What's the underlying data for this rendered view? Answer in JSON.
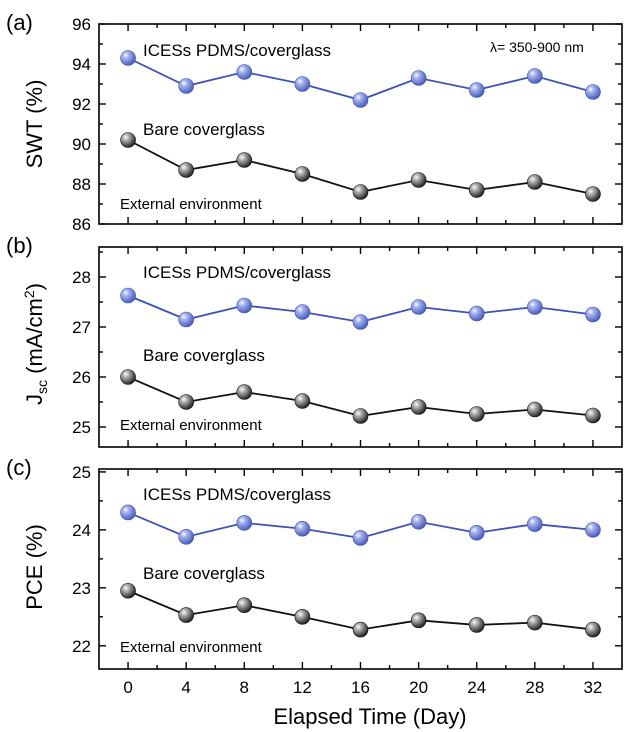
{
  "colors": {
    "ices": "#3f51b5",
    "ices_light": "#a9b7ef",
    "bare": "#111111",
    "bare_light": "#bdbdbd"
  },
  "xlabel": "Elapsed Time (Day)",
  "chart_data": [
    {
      "type": "line",
      "panel": "(a)",
      "ylabel": "SWT (%)",
      "ylim": [
        86,
        96
      ],
      "yticks": [
        86,
        88,
        90,
        92,
        94,
        96
      ],
      "xlim": [
        -2,
        34
      ],
      "xticks": [
        0,
        4,
        8,
        12,
        16,
        20,
        24,
        28,
        32
      ],
      "x": [
        0,
        4,
        8,
        12,
        16,
        20,
        24,
        28,
        32
      ],
      "series": [
        {
          "name": "ICESs PDMS/coverglass",
          "key": "ices",
          "values": [
            94.3,
            92.9,
            93.6,
            93.0,
            92.2,
            93.3,
            92.7,
            93.4,
            92.6
          ]
        },
        {
          "name": "Bare coverglass",
          "key": "bare",
          "values": [
            90.2,
            88.7,
            89.2,
            88.5,
            87.6,
            88.2,
            87.7,
            88.1,
            87.5
          ]
        }
      ],
      "annotations": {
        "condition": "External environment",
        "wavelength": "λ= 350-900 nm"
      }
    },
    {
      "type": "line",
      "panel": "(b)",
      "ylabel_main": "J",
      "ylabel_sub": "sc",
      "ylabel_rest": " (mA/cm",
      "ylabel_sup": "2",
      "ylabel_end": ")",
      "ylim": [
        24.6,
        28.6
      ],
      "yticks": [
        25,
        26,
        27,
        28
      ],
      "xlim": [
        -2,
        34
      ],
      "xticks": [
        0,
        4,
        8,
        12,
        16,
        20,
        24,
        28,
        32
      ],
      "x": [
        0,
        4,
        8,
        12,
        16,
        20,
        24,
        28,
        32
      ],
      "series": [
        {
          "name": "ICESs PDMS/coverglass",
          "key": "ices",
          "values": [
            27.63,
            27.15,
            27.43,
            27.3,
            27.1,
            27.4,
            27.27,
            27.4,
            27.25
          ]
        },
        {
          "name": "Bare coverglass",
          "key": "bare",
          "values": [
            26.0,
            25.5,
            25.7,
            25.52,
            25.22,
            25.4,
            25.26,
            25.35,
            25.23
          ]
        }
      ],
      "annotations": {
        "condition": "External environment"
      }
    },
    {
      "type": "line",
      "panel": "(c)",
      "ylabel": "PCE (%)",
      "ylim": [
        21.6,
        25.05
      ],
      "yticks": [
        22,
        23,
        24,
        25
      ],
      "xlim": [
        -2,
        34
      ],
      "xticks": [
        0,
        4,
        8,
        12,
        16,
        20,
        24,
        28,
        32
      ],
      "x": [
        0,
        4,
        8,
        12,
        16,
        20,
        24,
        28,
        32
      ],
      "series": [
        {
          "name": "ICESs PDMS/coverglass",
          "key": "ices",
          "values": [
            24.3,
            23.88,
            24.12,
            24.02,
            23.86,
            24.14,
            23.95,
            24.1,
            24.0
          ]
        },
        {
          "name": "Bare coverglass",
          "key": "bare",
          "values": [
            22.95,
            22.53,
            22.7,
            22.5,
            22.28,
            22.44,
            22.36,
            22.4,
            22.28
          ]
        }
      ],
      "annotations": {
        "condition": "External environment"
      }
    }
  ]
}
